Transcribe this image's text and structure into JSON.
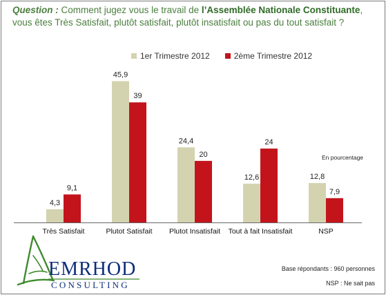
{
  "question": {
    "label": "Question :",
    "text_before": "Comment jugez vous le travail de",
    "organisation": "l’Assemblée Nationale Constituante",
    "text_after": ", vous êtes Très Satisfait, plutôt satisfait, plutôt insatisfait ou pas du tout satisfait ?"
  },
  "unit_note": "En pourcentage",
  "logo": {
    "name": "EMRHOD",
    "sub": "CONSULTING"
  },
  "footer": {
    "base": "Base répondants : 960  personnes",
    "nsp": "NSP : Ne sait pas"
  },
  "colors": {
    "series1": "#d4d3b0",
    "series2": "#c3141c",
    "accent": "#4a7e3e"
  },
  "chart_data": {
    "type": "bar",
    "title": "",
    "xlabel": "",
    "ylabel": "",
    "ylim": [
      0,
      46
    ],
    "grid": false,
    "legend_position": "top",
    "categories": [
      "Très Satisfait",
      "Plutot Satisfait",
      "Plutot Insatisfait",
      "Tout à fait Insatisfait",
      "NSP"
    ],
    "series": [
      {
        "name": "1er Trimestre 2012",
        "values": [
          4.3,
          45.9,
          24.4,
          12.6,
          12.8
        ],
        "labels": [
          "4,3",
          "45,9",
          "24,4",
          "12,6",
          "12,8"
        ]
      },
      {
        "name": "2ème Trimestre 2012",
        "values": [
          9.1,
          39,
          20,
          24,
          7.9
        ],
        "labels": [
          "9,1",
          "39",
          "20",
          "24",
          "7,9"
        ]
      }
    ]
  }
}
